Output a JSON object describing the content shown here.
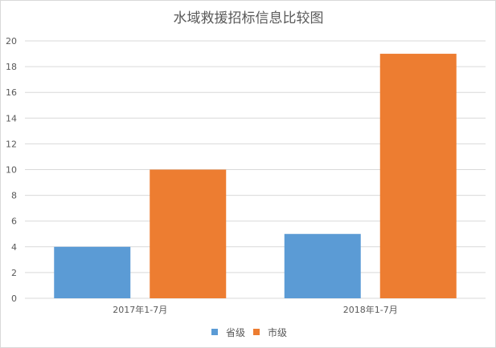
{
  "chart_data": {
    "type": "bar",
    "title": "水域救援招标信息比较图",
    "categories": [
      "2017年1-7月",
      "2018年1-7月"
    ],
    "series": [
      {
        "name": "省级",
        "values": [
          4,
          5
        ],
        "color": "#5b9bd5"
      },
      {
        "name": "市级",
        "values": [
          10,
          19
        ],
        "color": "#ed7d31"
      }
    ],
    "xlabel": "",
    "ylabel": "",
    "ylim": [
      0,
      20
    ],
    "yticks": [
      0,
      2,
      4,
      6,
      8,
      10,
      12,
      14,
      16,
      18,
      20
    ],
    "grid": true,
    "legend": "bottom"
  }
}
